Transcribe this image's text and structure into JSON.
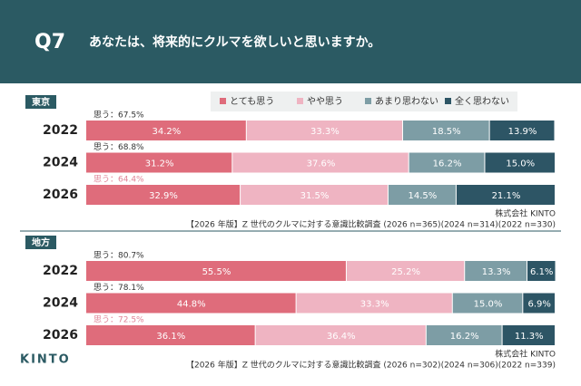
{
  "header": {
    "number": "Q7",
    "question": "あなたは、将来的にクルマを欲しいと思いますか。"
  },
  "logo": "KINTO",
  "legend": {
    "names": [
      "とても思う",
      "やや思う",
      "あまり思わない",
      "全く思わない"
    ]
  },
  "chart_data": [
    {
      "type": "stacked_bar",
      "title": "東京",
      "orientation": "horizontal",
      "categories": [
        "2022",
        "2024",
        "2026"
      ],
      "summary_labels": [
        "思う：67.5%",
        "思う：68.8%",
        "思う：64.4%"
      ],
      "summary_colors": [
        "#333333",
        "#333333",
        "#e08598"
      ],
      "xlim": [
        0,
        100
      ],
      "series": [
        {
          "name": "とても思う",
          "color": "#df6c7b",
          "values": [
            34.2,
            31.2,
            32.9
          ],
          "value_labels": [
            "34.2%",
            "31.2%",
            "32.9%"
          ]
        },
        {
          "name": "やや思う",
          "color": "#efb4c2",
          "values": [
            33.3,
            37.6,
            31.5
          ],
          "value_labels": [
            "33.3%",
            "37.6%",
            "31.5%"
          ]
        },
        {
          "name": "あまり思わない",
          "color": "#7d9da5",
          "values": [
            18.5,
            16.2,
            14.5
          ],
          "value_labels": [
            "18.5%",
            "16.2%",
            "14.5%"
          ]
        },
        {
          "name": "全く思わない",
          "color": "#2d5565",
          "values": [
            13.9,
            15.0,
            21.1
          ],
          "value_labels": [
            "13.9%",
            "15.0%",
            "21.1%"
          ]
        }
      ],
      "source_company": "株式会社 KINTO",
      "source": "【2026 年版】Z 世代のクルマに対する意識比較調査 (2026 n=365)(2024 n=314)(2022 n=330)"
    },
    {
      "type": "stacked_bar",
      "title": "地方",
      "orientation": "horizontal",
      "categories": [
        "2022",
        "2024",
        "2026"
      ],
      "summary_labels": [
        "思う：80.7%",
        "思う：78.1%",
        "思う：72.5%"
      ],
      "summary_colors": [
        "#333333",
        "#333333",
        "#e08598"
      ],
      "xlim": [
        0,
        100
      ],
      "series": [
        {
          "color": "#df6c7b",
          "values": [
            55.5,
            44.8,
            36.1
          ],
          "value_labels": [
            "55.5%",
            "44.8%",
            "36.1%"
          ]
        },
        {
          "color": "#efb4c2",
          "values": [
            25.2,
            33.3,
            36.4
          ],
          "value_labels": [
            "25.2%",
            "33.3%",
            "36.4%"
          ]
        },
        {
          "color": "#7d9da5",
          "values": [
            13.3,
            15.0,
            16.2
          ],
          "value_labels": [
            "13.3%",
            "15.0%",
            "16.2%"
          ]
        },
        {
          "color": "#2d5565",
          "values": [
            6.1,
            6.9,
            11.3
          ],
          "value_labels": [
            "6.1%",
            "6.9%",
            "11.3%"
          ]
        }
      ],
      "source_company": "株式会社 KINTO",
      "source": "【2026 年版】Z 世代のクルマに対する意識比較調査 (2026 n=302)(2024 n=306)(2022 n=339)"
    }
  ]
}
